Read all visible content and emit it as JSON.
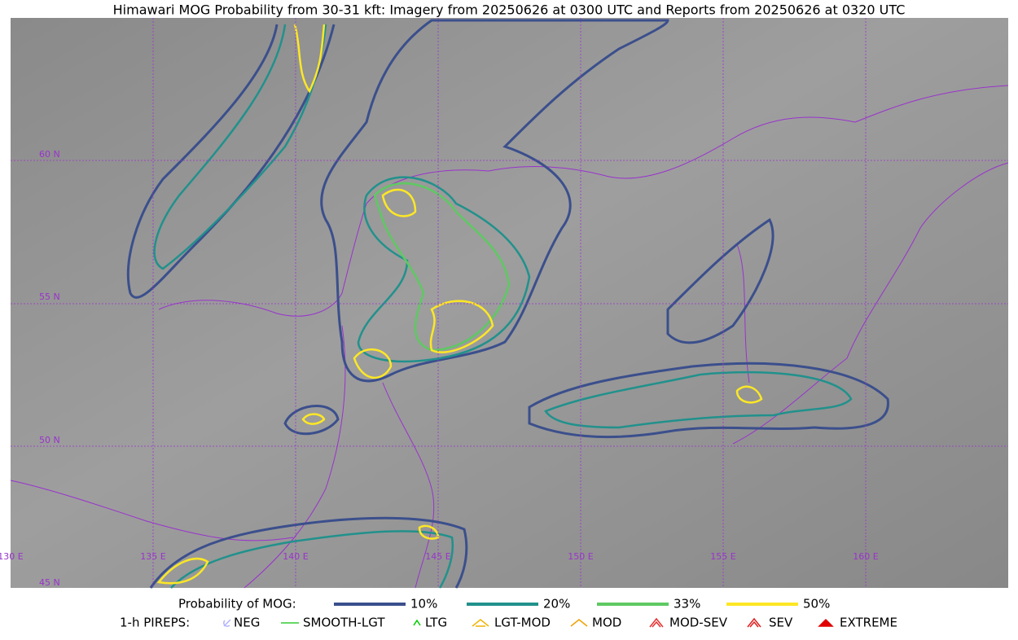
{
  "title": "Himawari MOG Probability from 30-31 kft: Imagery from 20250626 at 0300 UTC and Reports from 20250626 at 0320 UTC",
  "grid_labels": {
    "latitudes": [
      "60 N",
      "55 N",
      "50 N",
      "45 N"
    ],
    "longitudes": [
      "130 E",
      "135 E",
      "140 E",
      "145 E",
      "150 E",
      "155 E",
      "160 E"
    ]
  },
  "legend": {
    "probability": {
      "label": "Probability of MOG:",
      "items": [
        {
          "label": "10%",
          "color": "#3b4f8c"
        },
        {
          "label": "20%",
          "color": "#21918c"
        },
        {
          "label": "33%",
          "color": "#5ec962"
        },
        {
          "label": "50%",
          "color": "#fde725"
        }
      ]
    },
    "pireps": {
      "label": "1-h PIREPS:",
      "items": [
        {
          "label": "NEG",
          "color": "#b4b4ff"
        },
        {
          "label": "SMOOTH-LGT",
          "color": "#33cc33"
        },
        {
          "label": "LTG",
          "color": "#00cc00"
        },
        {
          "label": "LGT-MOD",
          "color": "#f0b400"
        },
        {
          "label": "MOD",
          "color": "#f0a000"
        },
        {
          "label": "MOD-SEV",
          "color": "#e83030"
        },
        {
          "label": "SEV",
          "color": "#e02020"
        },
        {
          "label": "EXTREME",
          "color": "#e00000"
        }
      ]
    }
  }
}
